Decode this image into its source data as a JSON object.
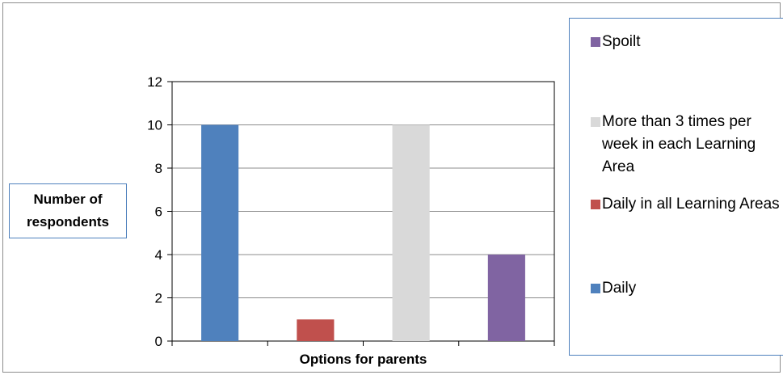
{
  "chart_data": {
    "type": "bar",
    "categories": [
      "Daily",
      "Daily in all Learning Areas",
      "More than 3 times per week in each Learning Area",
      "Spoilt"
    ],
    "values": [
      10,
      1,
      10,
      4
    ],
    "colors": [
      "#4f81bd",
      "#c0504d",
      "#d9d9d9",
      "#8064a2"
    ],
    "xlabel": "Options for parents",
    "ylabel_lines": [
      "Number of",
      "respondents"
    ],
    "ylim": [
      0,
      12
    ],
    "yticks": [
      0,
      2,
      4,
      6,
      8,
      10,
      12
    ],
    "grid": true,
    "legend_position": "right",
    "legend_order": [
      3,
      2,
      1,
      0
    ]
  }
}
